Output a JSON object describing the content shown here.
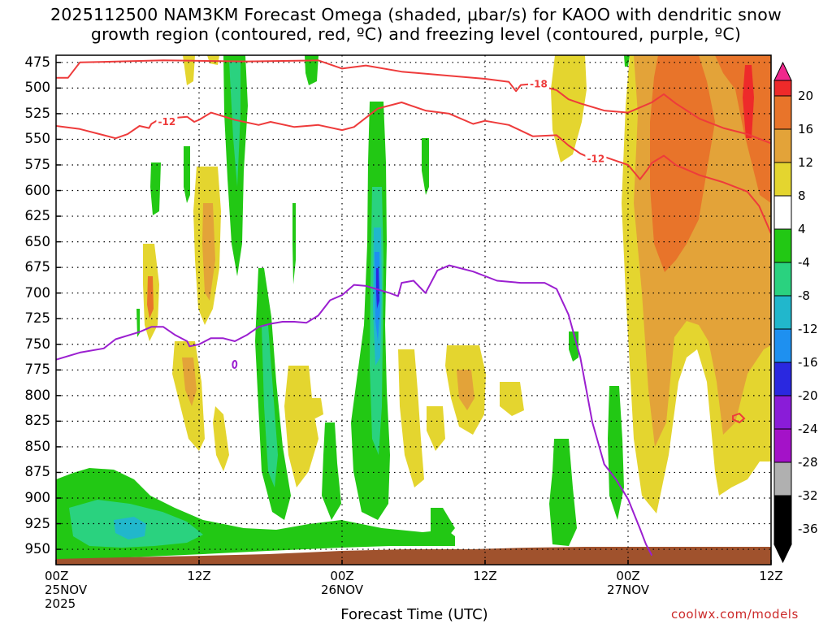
{
  "title": {
    "line1": "2025112500 NAM3KM Forecast Omega (shaded, μbar/s) for KAOO with dendritic snow",
    "line2": "growth region (contoured, red, ºC) and freezing level (contoured, purple, ºC)"
  },
  "chart_data": {
    "type": "contour",
    "title": "2025112500 NAM3KM Forecast Omega (shaded, μbar/s) for KAOO with dendritic snow growth region (contoured, red, ºC) and freezing level (contoured, purple, ºC)",
    "xlabel": "Forecast Time (UTC)",
    "ylabel": "",
    "x_ticks": [
      {
        "hour": 0,
        "line1": "00Z",
        "line2": "25NOV",
        "line3": "2025"
      },
      {
        "hour": 12,
        "line1": "12Z"
      },
      {
        "hour": 24,
        "line1": "00Z",
        "line2": "26NOV"
      },
      {
        "hour": 36,
        "line1": "12Z"
      },
      {
        "hour": 48,
        "line1": "00Z",
        "line2": "27NOV"
      },
      {
        "hour": 60,
        "line1": "12Z"
      }
    ],
    "xlim": [
      0,
      60
    ],
    "y_ticks": [
      475,
      500,
      525,
      550,
      575,
      600,
      625,
      650,
      675,
      700,
      725,
      750,
      775,
      800,
      825,
      850,
      875,
      900,
      925,
      950
    ],
    "ylim_hPa": [
      468,
      965
    ],
    "grid": true,
    "colorbar": {
      "labels": [
        "20",
        "16",
        "12",
        "8",
        "4",
        "-4",
        "-8",
        "-12",
        "-16",
        "-20",
        "-24",
        "-28",
        "-32",
        "-36"
      ],
      "colors": [
        "#f0288c",
        "#ee2a2a",
        "#e8742a",
        "#e3a339",
        "#e4d52f",
        "#ffffff",
        "#22c814",
        "#2ad27f",
        "#21b7cc",
        "#1e90f0",
        "#2a28e0",
        "#8a1cd8",
        "#a412c8",
        "#b0b0b0",
        "#000000"
      ]
    },
    "contours": [
      {
        "label": "-12",
        "color": "#ee3b3b",
        "points": [
          [
            0,
            537
          ],
          [
            2,
            540
          ],
          [
            4,
            546
          ],
          [
            5,
            549
          ],
          [
            6,
            545
          ],
          [
            7,
            537
          ],
          [
            7.8,
            539
          ],
          [
            8,
            535
          ],
          [
            9,
            528
          ],
          [
            10,
            529
          ],
          [
            11,
            528
          ],
          [
            11.6,
            533
          ],
          [
            12,
            531
          ],
          [
            13,
            524
          ],
          [
            15,
            531
          ],
          [
            17,
            536
          ],
          [
            18,
            533
          ],
          [
            20,
            538
          ],
          [
            22,
            536
          ],
          [
            24,
            541
          ],
          [
            25,
            538
          ],
          [
            27,
            520
          ],
          [
            29,
            514
          ],
          [
            31,
            522
          ],
          [
            33,
            525
          ],
          [
            35,
            535
          ],
          [
            36,
            532
          ],
          [
            38,
            536
          ],
          [
            40,
            547
          ],
          [
            42,
            546
          ],
          [
            43,
            556
          ],
          [
            44,
            564
          ],
          [
            45,
            569
          ],
          [
            46,
            567
          ],
          [
            47,
            571
          ],
          [
            48,
            575
          ],
          [
            49,
            589
          ],
          [
            49.6,
            580
          ],
          [
            50,
            573
          ],
          [
            51,
            566
          ],
          [
            52,
            575
          ],
          [
            54,
            585
          ],
          [
            56,
            592
          ],
          [
            58,
            601
          ],
          [
            59,
            615
          ],
          [
            60,
            642
          ]
        ]
      },
      {
        "label": "-18",
        "color": "#ee3b3b",
        "points": [
          [
            0,
            490
          ],
          [
            1,
            490
          ],
          [
            2,
            475
          ],
          [
            9,
            473
          ],
          [
            16,
            474
          ],
          [
            22,
            473
          ],
          [
            24,
            481
          ],
          [
            26,
            478
          ],
          [
            29,
            484
          ],
          [
            33,
            488
          ],
          [
            36,
            491
          ],
          [
            38,
            494
          ],
          [
            38.6,
            503
          ],
          [
            39,
            497
          ],
          [
            40,
            496
          ],
          [
            42,
            502
          ],
          [
            43,
            511
          ],
          [
            44,
            515
          ],
          [
            46,
            522
          ],
          [
            48,
            524
          ],
          [
            50,
            514
          ],
          [
            51,
            506
          ],
          [
            52,
            515
          ],
          [
            54,
            530
          ],
          [
            56,
            539
          ],
          [
            58,
            545
          ],
          [
            60,
            554
          ]
        ]
      },
      {
        "label": "0",
        "color": "#9b1fd0",
        "points": [
          [
            0,
            765
          ],
          [
            2,
            758
          ],
          [
            4,
            754
          ],
          [
            5,
            745
          ],
          [
            7,
            738
          ],
          [
            8,
            733
          ],
          [
            9,
            733
          ],
          [
            10,
            741
          ],
          [
            11,
            747
          ],
          [
            11.2,
            752
          ],
          [
            12,
            750
          ],
          [
            13,
            744
          ],
          [
            14,
            744
          ],
          [
            15,
            747
          ],
          [
            16,
            741
          ],
          [
            17,
            733
          ],
          [
            18,
            730
          ],
          [
            19,
            728
          ],
          [
            20,
            728
          ],
          [
            21,
            729
          ],
          [
            22,
            722
          ],
          [
            23,
            707
          ],
          [
            24,
            702
          ],
          [
            25,
            692
          ],
          [
            26,
            693
          ],
          [
            28,
            700
          ],
          [
            28.7,
            703
          ],
          [
            29,
            690
          ],
          [
            30,
            688
          ],
          [
            31,
            700
          ],
          [
            32,
            678
          ],
          [
            33,
            673
          ],
          [
            35,
            679
          ],
          [
            37,
            688
          ],
          [
            39,
            690
          ],
          [
            41,
            690
          ],
          [
            42,
            696
          ],
          [
            43,
            721
          ],
          [
            44,
            763
          ],
          [
            45,
            826
          ],
          [
            46,
            867
          ],
          [
            47,
            882
          ],
          [
            48,
            901
          ],
          [
            49,
            930
          ],
          [
            49.5,
            945
          ],
          [
            50,
            956
          ]
        ]
      }
    ],
    "contour_labels": [
      {
        "text": "-12",
        "hour": 9.3,
        "hPa": 533
      },
      {
        "text": "-18",
        "hour": 40.5,
        "hPa": 496
      },
      {
        "text": "-12",
        "hour": 45.3,
        "hPa": 569
      }
    ],
    "terrain_color": "#a0522d"
  },
  "footer": {
    "watermark": "coolwx.com/models"
  }
}
